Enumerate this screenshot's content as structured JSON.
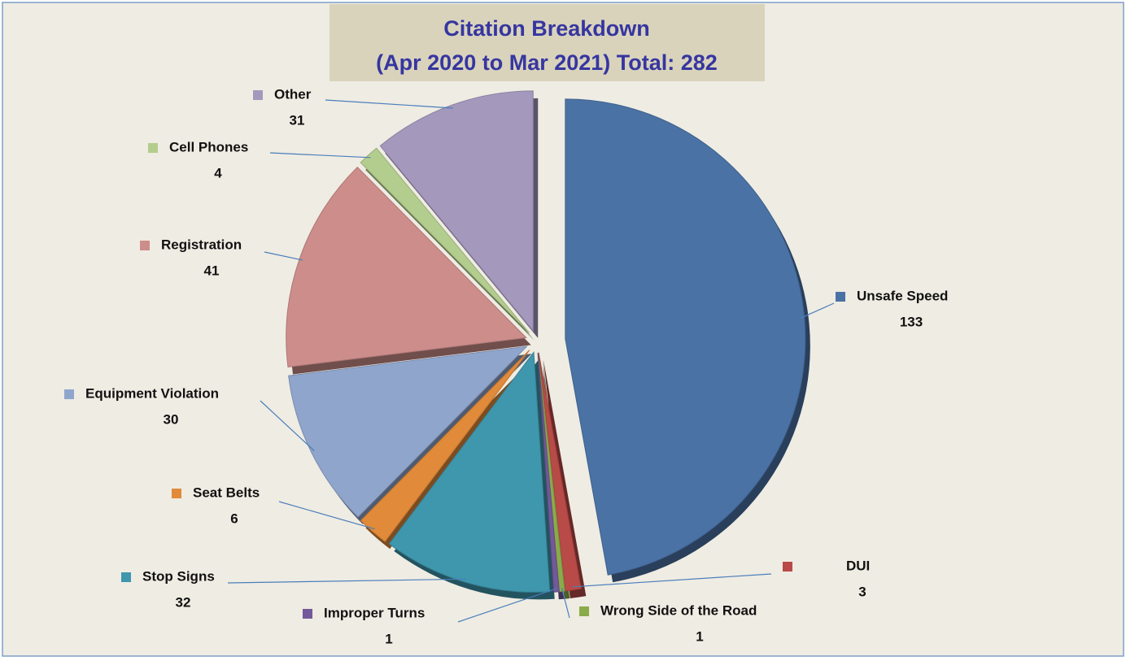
{
  "chart_data": {
    "type": "pie",
    "title": "Citation Breakdown",
    "subtitle": "(Apr 2020 to Mar 2021) Total: 282",
    "categories": [
      "Unsafe Speed",
      "DUI",
      "Wrong Side of the Road",
      "Improper Turns",
      "Stop Signs",
      "Seat Belts",
      "Equipment Violation",
      "Registration",
      "Cell Phones",
      "Other"
    ],
    "values": [
      133,
      3,
      1,
      1,
      32,
      6,
      30,
      41,
      4,
      31
    ],
    "colors": [
      "#4a72a5",
      "#b84a47",
      "#8aab4a",
      "#73589a",
      "#3f97ad",
      "#e08a3a",
      "#8fa5cc",
      "#cc8d8b",
      "#b3cd8e",
      "#a498bd"
    ]
  }
}
